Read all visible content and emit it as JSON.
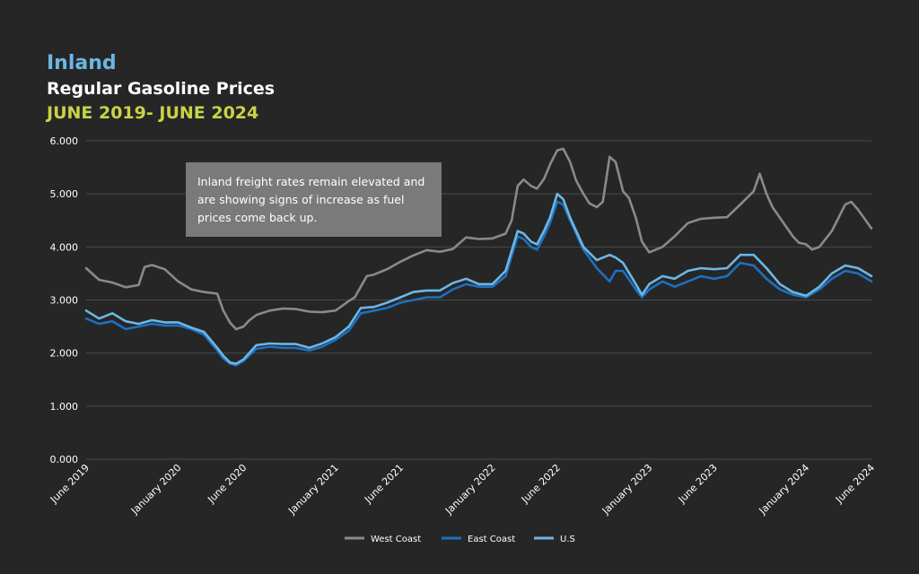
{
  "header": {
    "title": "Inland",
    "subtitle": "Regular Gasoline Prices",
    "date_range": "JUNE 2019- JUNE 2024"
  },
  "callout": {
    "lines": [
      "Inland freight rates remain elevated and",
      "are showing signs of increase as fuel",
      "prices come back up."
    ]
  },
  "colors": {
    "background": "#262626",
    "title": "#6bb7e4",
    "date_range": "#c8d348",
    "grid": "#4a4a4a",
    "west_coast": "#8a8a8a",
    "east_coast": "#1f6fbf",
    "us": "#6bb7e4"
  },
  "chart_data": {
    "type": "line",
    "title": "Regular Gasoline Prices",
    "ylim": [
      0,
      6
    ],
    "yticks": [
      "0.000",
      "1.000",
      "2.000",
      "3.000",
      "4.000",
      "5.000",
      "6.000"
    ],
    "grid": true,
    "legend": "bottom-center",
    "x_range": [
      "2019-06-01",
      "2024-06-01"
    ],
    "x_ticks": [
      {
        "date": "2019-06-01",
        "label": "June 2019"
      },
      {
        "date": "2020-01-01",
        "label": "January 2020"
      },
      {
        "date": "2020-06-01",
        "label": "June 2020"
      },
      {
        "date": "2021-01-01",
        "label": "January 2021"
      },
      {
        "date": "2021-06-01",
        "label": "June 2021"
      },
      {
        "date": "2022-01-01",
        "label": "January 2022"
      },
      {
        "date": "2022-06-01",
        "label": "June 2022"
      },
      {
        "date": "2023-01-01",
        "label": "January 2023"
      },
      {
        "date": "2023-06-01",
        "label": "June 2023"
      },
      {
        "date": "2024-01-01",
        "label": "January 2024"
      },
      {
        "date": "2024-06-01",
        "label": "June 2024"
      }
    ],
    "series": [
      {
        "name": "West Coast",
        "color": "#8a8a8a",
        "points": [
          [
            "2019-06-01",
            3.6
          ],
          [
            "2019-07-01",
            3.38
          ],
          [
            "2019-08-01",
            3.33
          ],
          [
            "2019-09-01",
            3.24
          ],
          [
            "2019-10-01",
            3.28
          ],
          [
            "2019-10-15",
            3.62
          ],
          [
            "2019-11-01",
            3.66
          ],
          [
            "2019-12-01",
            3.58
          ],
          [
            "2020-01-01",
            3.35
          ],
          [
            "2020-02-01",
            3.2
          ],
          [
            "2020-03-01",
            3.15
          ],
          [
            "2020-04-01",
            3.12
          ],
          [
            "2020-04-15",
            2.8
          ],
          [
            "2020-05-01",
            2.57
          ],
          [
            "2020-05-15",
            2.45
          ],
          [
            "2020-06-01",
            2.5
          ],
          [
            "2020-06-15",
            2.62
          ],
          [
            "2020-07-01",
            2.72
          ],
          [
            "2020-08-01",
            2.8
          ],
          [
            "2020-09-01",
            2.84
          ],
          [
            "2020-10-01",
            2.83
          ],
          [
            "2020-11-01",
            2.78
          ],
          [
            "2020-12-01",
            2.77
          ],
          [
            "2021-01-01",
            2.8
          ],
          [
            "2021-01-15",
            2.88
          ],
          [
            "2021-02-01",
            2.98
          ],
          [
            "2021-02-15",
            3.05
          ],
          [
            "2021-03-01",
            3.25
          ],
          [
            "2021-03-15",
            3.45
          ],
          [
            "2021-04-01",
            3.48
          ],
          [
            "2021-05-01",
            3.58
          ],
          [
            "2021-06-01",
            3.72
          ],
          [
            "2021-07-01",
            3.84
          ],
          [
            "2021-08-01",
            3.94
          ],
          [
            "2021-09-01",
            3.91
          ],
          [
            "2021-10-01",
            3.96
          ],
          [
            "2021-11-01",
            4.18
          ],
          [
            "2021-12-01",
            4.15
          ],
          [
            "2022-01-01",
            4.16
          ],
          [
            "2022-02-01",
            4.25
          ],
          [
            "2022-02-15",
            4.5
          ],
          [
            "2022-03-01",
            5.15
          ],
          [
            "2022-03-15",
            5.27
          ],
          [
            "2022-04-01",
            5.15
          ],
          [
            "2022-04-15",
            5.1
          ],
          [
            "2022-05-01",
            5.28
          ],
          [
            "2022-05-15",
            5.55
          ],
          [
            "2022-06-01",
            5.82
          ],
          [
            "2022-06-15",
            5.85
          ],
          [
            "2022-07-01",
            5.6
          ],
          [
            "2022-07-15",
            5.25
          ],
          [
            "2022-08-01",
            5.0
          ],
          [
            "2022-08-15",
            4.82
          ],
          [
            "2022-09-01",
            4.75
          ],
          [
            "2022-09-15",
            4.85
          ],
          [
            "2022-10-01",
            5.7
          ],
          [
            "2022-10-15",
            5.6
          ],
          [
            "2022-11-01",
            5.05
          ],
          [
            "2022-11-15",
            4.92
          ],
          [
            "2022-12-01",
            4.55
          ],
          [
            "2022-12-15",
            4.1
          ],
          [
            "2023-01-01",
            3.9
          ],
          [
            "2023-02-01",
            4.0
          ],
          [
            "2023-03-01",
            4.2
          ],
          [
            "2023-04-01",
            4.45
          ],
          [
            "2023-05-01",
            4.53
          ],
          [
            "2023-06-01",
            4.55
          ],
          [
            "2023-07-01",
            4.56
          ],
          [
            "2023-08-01",
            4.8
          ],
          [
            "2023-09-01",
            5.05
          ],
          [
            "2023-09-15",
            5.38
          ],
          [
            "2023-10-01",
            5.0
          ],
          [
            "2023-10-15",
            4.75
          ],
          [
            "2023-11-01",
            4.55
          ],
          [
            "2023-12-01",
            4.2
          ],
          [
            "2023-12-15",
            4.08
          ],
          [
            "2024-01-01",
            4.05
          ],
          [
            "2024-01-15",
            3.95
          ],
          [
            "2024-02-01",
            4.0
          ],
          [
            "2024-03-01",
            4.3
          ],
          [
            "2024-04-01",
            4.8
          ],
          [
            "2024-04-15",
            4.85
          ],
          [
            "2024-05-01",
            4.7
          ],
          [
            "2024-06-01",
            4.35
          ]
        ]
      },
      {
        "name": "East Coast",
        "color": "#1f6fbf",
        "points": [
          [
            "2019-06-01",
            2.65
          ],
          [
            "2019-07-01",
            2.55
          ],
          [
            "2019-08-01",
            2.6
          ],
          [
            "2019-09-01",
            2.45
          ],
          [
            "2019-10-01",
            2.5
          ],
          [
            "2019-11-01",
            2.55
          ],
          [
            "2019-12-01",
            2.52
          ],
          [
            "2020-01-01",
            2.52
          ],
          [
            "2020-02-01",
            2.45
          ],
          [
            "2020-03-01",
            2.35
          ],
          [
            "2020-04-01",
            2.05
          ],
          [
            "2020-04-15",
            1.9
          ],
          [
            "2020-05-01",
            1.8
          ],
          [
            "2020-05-15",
            1.77
          ],
          [
            "2020-06-01",
            1.85
          ],
          [
            "2020-07-01",
            2.08
          ],
          [
            "2020-08-01",
            2.12
          ],
          [
            "2020-09-01",
            2.1
          ],
          [
            "2020-10-01",
            2.1
          ],
          [
            "2020-11-01",
            2.05
          ],
          [
            "2020-12-01",
            2.12
          ],
          [
            "2021-01-01",
            2.25
          ],
          [
            "2021-02-01",
            2.42
          ],
          [
            "2021-03-01",
            2.75
          ],
          [
            "2021-04-01",
            2.8
          ],
          [
            "2021-05-01",
            2.85
          ],
          [
            "2021-06-01",
            2.95
          ],
          [
            "2021-07-01",
            3.0
          ],
          [
            "2021-08-01",
            3.05
          ],
          [
            "2021-09-01",
            3.05
          ],
          [
            "2021-10-01",
            3.2
          ],
          [
            "2021-11-01",
            3.3
          ],
          [
            "2021-12-01",
            3.25
          ],
          [
            "2022-01-01",
            3.25
          ],
          [
            "2022-02-01",
            3.45
          ],
          [
            "2022-03-01",
            4.2
          ],
          [
            "2022-03-15",
            4.15
          ],
          [
            "2022-04-01",
            4.0
          ],
          [
            "2022-04-15",
            3.95
          ],
          [
            "2022-05-01",
            4.2
          ],
          [
            "2022-05-15",
            4.45
          ],
          [
            "2022-06-01",
            4.85
          ],
          [
            "2022-06-15",
            4.8
          ],
          [
            "2022-07-01",
            4.5
          ],
          [
            "2022-08-01",
            3.95
          ],
          [
            "2022-09-01",
            3.6
          ],
          [
            "2022-10-01",
            3.35
          ],
          [
            "2022-10-15",
            3.55
          ],
          [
            "2022-11-01",
            3.55
          ],
          [
            "2022-12-01",
            3.2
          ],
          [
            "2022-12-15",
            3.05
          ],
          [
            "2023-01-01",
            3.2
          ],
          [
            "2023-02-01",
            3.35
          ],
          [
            "2023-03-01",
            3.25
          ],
          [
            "2023-04-01",
            3.35
          ],
          [
            "2023-05-01",
            3.45
          ],
          [
            "2023-06-01",
            3.4
          ],
          [
            "2023-07-01",
            3.45
          ],
          [
            "2023-08-01",
            3.7
          ],
          [
            "2023-09-01",
            3.65
          ],
          [
            "2023-10-01",
            3.4
          ],
          [
            "2023-11-01",
            3.2
          ],
          [
            "2023-12-01",
            3.1
          ],
          [
            "2024-01-01",
            3.05
          ],
          [
            "2024-02-01",
            3.2
          ],
          [
            "2024-03-01",
            3.4
          ],
          [
            "2024-04-01",
            3.55
          ],
          [
            "2024-05-01",
            3.5
          ],
          [
            "2024-06-01",
            3.35
          ]
        ]
      },
      {
        "name": "U.S",
        "color": "#6bb7e4",
        "points": [
          [
            "2019-06-01",
            2.8
          ],
          [
            "2019-07-01",
            2.65
          ],
          [
            "2019-08-01",
            2.75
          ],
          [
            "2019-09-01",
            2.6
          ],
          [
            "2019-10-01",
            2.55
          ],
          [
            "2019-11-01",
            2.62
          ],
          [
            "2019-12-01",
            2.58
          ],
          [
            "2020-01-01",
            2.58
          ],
          [
            "2020-02-01",
            2.48
          ],
          [
            "2020-03-01",
            2.4
          ],
          [
            "2020-04-01",
            2.1
          ],
          [
            "2020-04-15",
            1.95
          ],
          [
            "2020-05-01",
            1.82
          ],
          [
            "2020-05-15",
            1.8
          ],
          [
            "2020-06-01",
            1.88
          ],
          [
            "2020-07-01",
            2.15
          ],
          [
            "2020-08-01",
            2.18
          ],
          [
            "2020-09-01",
            2.17
          ],
          [
            "2020-10-01",
            2.17
          ],
          [
            "2020-11-01",
            2.1
          ],
          [
            "2020-12-01",
            2.18
          ],
          [
            "2021-01-01",
            2.3
          ],
          [
            "2021-02-01",
            2.5
          ],
          [
            "2021-03-01",
            2.85
          ],
          [
            "2021-04-01",
            2.87
          ],
          [
            "2021-05-01",
            2.95
          ],
          [
            "2021-06-01",
            3.05
          ],
          [
            "2021-07-01",
            3.15
          ],
          [
            "2021-08-01",
            3.18
          ],
          [
            "2021-09-01",
            3.18
          ],
          [
            "2021-10-01",
            3.32
          ],
          [
            "2021-11-01",
            3.4
          ],
          [
            "2021-12-01",
            3.3
          ],
          [
            "2022-01-01",
            3.3
          ],
          [
            "2022-02-01",
            3.55
          ],
          [
            "2022-03-01",
            4.3
          ],
          [
            "2022-03-15",
            4.25
          ],
          [
            "2022-04-01",
            4.1
          ],
          [
            "2022-04-15",
            4.05
          ],
          [
            "2022-05-01",
            4.3
          ],
          [
            "2022-05-15",
            4.55
          ],
          [
            "2022-06-01",
            5.0
          ],
          [
            "2022-06-15",
            4.9
          ],
          [
            "2022-07-01",
            4.55
          ],
          [
            "2022-08-01",
            4.0
          ],
          [
            "2022-09-01",
            3.75
          ],
          [
            "2022-10-01",
            3.85
          ],
          [
            "2022-10-15",
            3.8
          ],
          [
            "2022-11-01",
            3.7
          ],
          [
            "2022-12-01",
            3.3
          ],
          [
            "2022-12-15",
            3.1
          ],
          [
            "2023-01-01",
            3.3
          ],
          [
            "2023-02-01",
            3.45
          ],
          [
            "2023-03-01",
            3.4
          ],
          [
            "2023-04-01",
            3.55
          ],
          [
            "2023-05-01",
            3.6
          ],
          [
            "2023-06-01",
            3.58
          ],
          [
            "2023-07-01",
            3.6
          ],
          [
            "2023-08-01",
            3.85
          ],
          [
            "2023-09-01",
            3.85
          ],
          [
            "2023-10-01",
            3.6
          ],
          [
            "2023-11-01",
            3.3
          ],
          [
            "2023-12-01",
            3.15
          ],
          [
            "2024-01-01",
            3.08
          ],
          [
            "2024-02-01",
            3.25
          ],
          [
            "2024-03-01",
            3.5
          ],
          [
            "2024-04-01",
            3.65
          ],
          [
            "2024-05-01",
            3.6
          ],
          [
            "2024-06-01",
            3.45
          ]
        ]
      }
    ]
  }
}
